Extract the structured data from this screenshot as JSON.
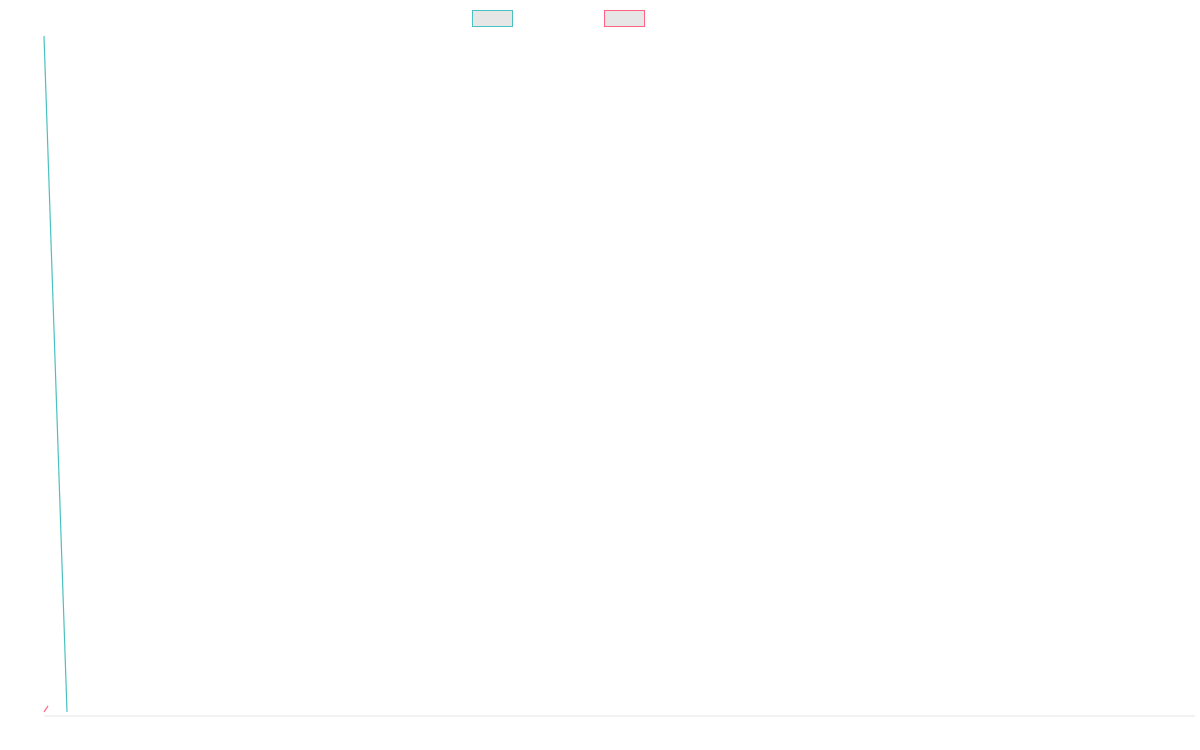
{
  "chart_data": {
    "type": "line",
    "title": "",
    "xlabel": "",
    "ylabel": "",
    "grid": false,
    "legend_position": "top-center",
    "series": [
      {
        "color": "#4bc0c0",
        "legend_fill": "#e6e6e6",
        "points": [
          [
            0,
            1
          ],
          [
            0.02,
            0
          ]
        ]
      },
      {
        "color": "#ff6384",
        "legend_fill": "#e6e6e6",
        "points": [
          [
            0,
            0
          ],
          [
            0.0035,
            0.009
          ]
        ]
      }
    ],
    "baseline_color": "#e6e6e6",
    "xlim": [
      0,
      1
    ],
    "ylim": [
      0,
      1
    ]
  }
}
